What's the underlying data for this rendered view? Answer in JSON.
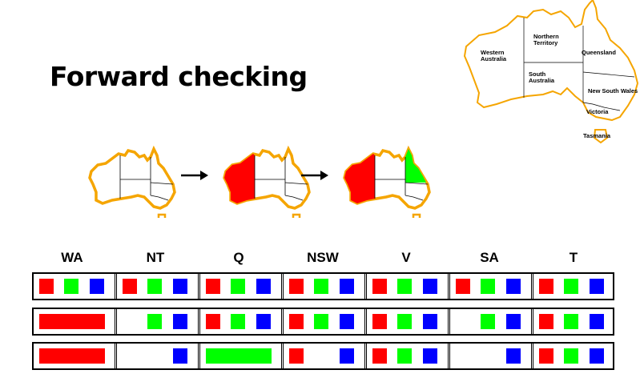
{
  "title": "Forward checking",
  "map": {
    "regions": [
      "Western Australia",
      "Northern Territory",
      "Queensland",
      "South Australia",
      "New South Wales",
      "Victoria",
      "Tasmania"
    ]
  },
  "columns": [
    "WA",
    "NT",
    "Q",
    "NSW",
    "V",
    "SA",
    "T"
  ],
  "colors": {
    "red": "#ff0000",
    "green": "#00ff00",
    "blue": "#0000ff",
    "outline": "#f5a500"
  },
  "rows": [
    [
      [
        "red",
        "green",
        "blue"
      ],
      [
        "red",
        "green",
        "blue"
      ],
      [
        "red",
        "green",
        "blue"
      ],
      [
        "red",
        "green",
        "blue"
      ],
      [
        "red",
        "green",
        "blue"
      ],
      [
        "red",
        "green",
        "blue"
      ],
      [
        "red",
        "green",
        "blue"
      ]
    ],
    [
      [
        "red"
      ],
      [
        "green",
        "blue"
      ],
      [
        "red",
        "green",
        "blue"
      ],
      [
        "red",
        "green",
        "blue"
      ],
      [
        "red",
        "green",
        "blue"
      ],
      [
        "green",
        "blue"
      ],
      [
        "red",
        "green",
        "blue"
      ]
    ],
    [
      [
        "red"
      ],
      [
        "blue"
      ],
      [
        "green"
      ],
      [
        "red",
        "blue"
      ],
      [
        "red",
        "green",
        "blue"
      ],
      [
        "blue"
      ],
      [
        "red",
        "green",
        "blue"
      ]
    ]
  ]
}
